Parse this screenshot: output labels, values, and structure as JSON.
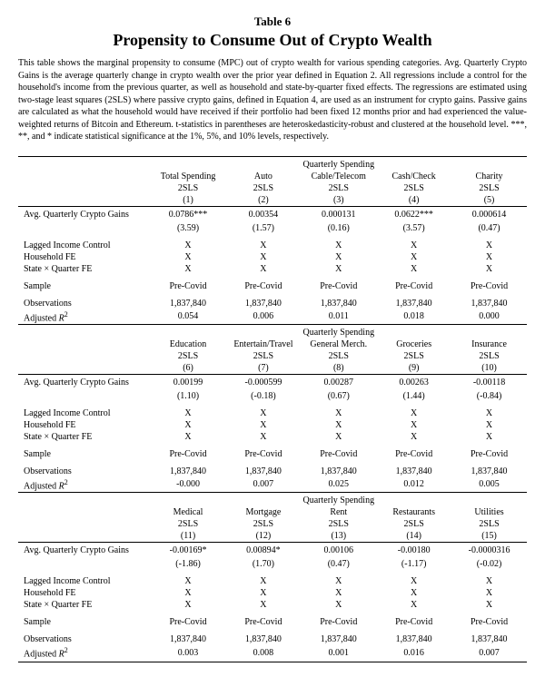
{
  "table_label": "Table 6",
  "title": "Propensity to Consume Out of Crypto Wealth",
  "caption": "This table shows the marginal propensity to consume (MPC) out of crypto wealth for various spending categories. Avg. Quarterly Crypto Gains is the average quarterly change in crypto wealth over the prior year defined in Equation 2. All regressions include a control for the household's income from the previous quarter, as well as household and state-by-quarter fixed effects. The regressions are estimated using two-stage least squares (2SLS) where passive crypto gains, defined in Equation 4, are used as an instrument for crypto gains. Passive gains are calculated as what the household would have received if their portfolio had been fixed 12 months prior and had experienced the value-weighted returns of Bitcoin and Ethereum.  t-statistics in parentheses are heteroskedasticity-robust and clustered at the household level.  ***, **, and * indicate statistical significance at the 1%, 5%, and 10% levels, respectively.",
  "group_header": "Quarterly Spending",
  "method": "2SLS",
  "row_labels": {
    "gains": "Avg. Quarterly Crypto Gains",
    "lag": "Lagged Income Control",
    "hhfe": "Household FE",
    "sqfe": "State × Quarter FE",
    "sample": "Sample",
    "obs": "Observations",
    "r2": "Adjusted R²"
  },
  "sample_value": "Pre-Covid",
  "obs_value": "1,837,840",
  "x": "X",
  "panels": [
    {
      "cols": [
        "Total Spending",
        "Auto",
        "Cable/Telecom",
        "Cash/Check",
        "Charity"
      ],
      "nums": [
        "(1)",
        "(2)",
        "(3)",
        "(4)",
        "(5)"
      ],
      "coef": [
        "0.0786***",
        "0.00354",
        "0.000131",
        "0.0622***",
        "0.000614"
      ],
      "tstat": [
        "(3.59)",
        "(1.57)",
        "(0.16)",
        "(3.57)",
        "(0.47)"
      ],
      "r2": [
        "0.054",
        "0.006",
        "0.011",
        "0.018",
        "0.000"
      ]
    },
    {
      "cols": [
        "Education",
        "Entertain/Travel",
        "General Merch.",
        "Groceries",
        "Insurance"
      ],
      "nums": [
        "(6)",
        "(7)",
        "(8)",
        "(9)",
        "(10)"
      ],
      "coef": [
        "0.00199",
        "-0.000599",
        "0.00287",
        "0.00263",
        "-0.00118"
      ],
      "tstat": [
        "(1.10)",
        "(-0.18)",
        "(0.67)",
        "(1.44)",
        "(-0.84)"
      ],
      "r2": [
        "-0.000",
        "0.007",
        "0.025",
        "0.012",
        "0.005"
      ]
    },
    {
      "cols": [
        "Medical",
        "Mortgage",
        "Rent",
        "Restaurants",
        "Utilities"
      ],
      "nums": [
        "(11)",
        "(12)",
        "(13)",
        "(14)",
        "(15)"
      ],
      "coef": [
        "-0.00169*",
        "0.00894*",
        "0.00106",
        "-0.00180",
        "-0.0000316"
      ],
      "tstat": [
        "(-1.86)",
        "(1.70)",
        "(0.47)",
        "(-1.17)",
        "(-0.02)"
      ],
      "r2": [
        "0.003",
        "0.008",
        "0.001",
        "0.016",
        "0.007"
      ]
    }
  ]
}
